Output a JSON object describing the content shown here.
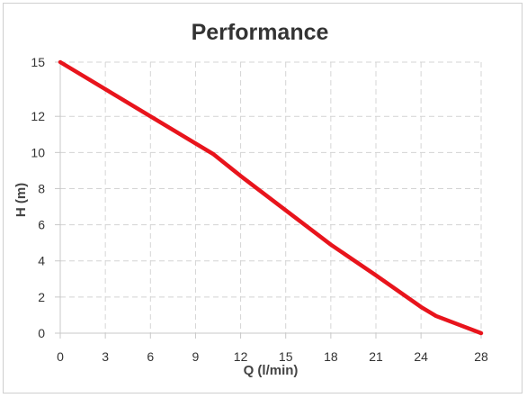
{
  "chart_data": {
    "type": "line",
    "title": "Performance",
    "xlabel": "Q (l/min)",
    "ylabel": "H (m)",
    "xlim": [
      0,
      28
    ],
    "ylim": [
      0,
      15
    ],
    "x_ticks": [
      0,
      3,
      6,
      9,
      12,
      15,
      18,
      21,
      24,
      28
    ],
    "y_ticks": [
      0,
      2,
      4,
      6,
      8,
      10,
      12,
      15
    ],
    "grid": true,
    "series": [
      {
        "color": "#e8141c",
        "x": [
          0,
          3,
          6,
          9,
          10.2,
          12,
          15,
          18,
          21,
          24,
          25,
          28
        ],
        "y": [
          15,
          13.5,
          12,
          10.5,
          9.9,
          8.7,
          6.8,
          4.9,
          3.2,
          1.45,
          0.95,
          0
        ]
      }
    ]
  }
}
